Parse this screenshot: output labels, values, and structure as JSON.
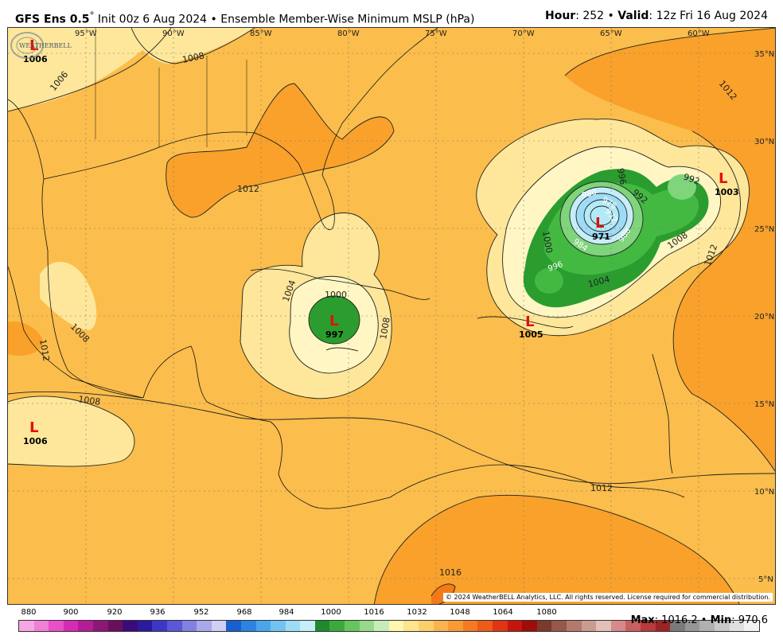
{
  "header": {
    "model": "GFS Ens 0.5",
    "degree": "°",
    "init": " Init 00z 6 Aug 2024",
    "separator": " • ",
    "product": "Ensemble Member-Wise Minimum MSLP (hPa)",
    "hour_label": "Hour",
    "hour_value": ": 252",
    "valid_label": "Valid",
    "valid_value": ": 12z Fri 16 Aug 2024"
  },
  "map": {
    "longitude_labels": [
      "95°W",
      "90°W",
      "85°W",
      "80°W",
      "75°W",
      "70°W",
      "65°W",
      "60°W"
    ],
    "latitude_labels": [
      "35°N",
      "30°N",
      "25°N",
      "20°N",
      "15°N",
      "10°N",
      "5°N"
    ],
    "contour_labels": [
      "1006",
      "1008",
      "1008",
      "1012",
      "1012",
      "1012",
      "1012",
      "1012",
      "1016",
      "1000",
      "1004",
      "1008",
      "992",
      "996",
      "992",
      "980",
      "976",
      "972",
      "988",
      "984",
      "1000",
      "996",
      "1004",
      "1008",
      "1008"
    ],
    "lows": [
      {
        "label": "L",
        "value": "1006"
      },
      {
        "label": "L",
        "value": "1006"
      },
      {
        "label": "L",
        "value": "997"
      },
      {
        "label": "L",
        "value": "971"
      },
      {
        "label": "L",
        "value": "1003"
      },
      {
        "label": "L",
        "value": "1005"
      }
    ],
    "copyright": "© 2024 WeatherBELL Analytics, LLC. All rights reserved. License required for commercial distribution.",
    "logo_text": "WEATHERBELL",
    "colors": {
      "ocean_1008_1012": "#fbbd4c",
      "band_1012_1016": "#f9a12b",
      "band_1016_plus": "#f37a17",
      "band_1004_1008": "#fee79a",
      "band_1000_1004": "#fff6c4",
      "band_996_1000": "#2a9d2e",
      "band_992_996": "#43b942",
      "band_988_992": "#7fd47c",
      "core_light": "#b4eaf5",
      "low_marker": "#e01010"
    }
  },
  "legend": {
    "ticks": [
      "880",
      "900",
      "920",
      "936",
      "952",
      "968",
      "984",
      "1000",
      "1016",
      "1032",
      "1048",
      "1064",
      "1080"
    ],
    "colors": [
      "#f7a6e4",
      "#f07fd8",
      "#e94fc9",
      "#d62bb4",
      "#b41d97",
      "#8e1677",
      "#6a0f5c",
      "#3a0b7a",
      "#2a1a9c",
      "#3c37c7",
      "#5a58d8",
      "#8280e0",
      "#aaa7ea",
      "#d0cff3",
      "#1a5fd1",
      "#2c84e0",
      "#4aa6ec",
      "#72c3f2",
      "#9edcf6",
      "#c6eef8",
      "#1f8a2b",
      "#3caa3a",
      "#66c560",
      "#97d98b",
      "#c7ecbc",
      "#fff6b0",
      "#fee48d",
      "#fdcf6b",
      "#fbb44d",
      "#f99a35",
      "#f57a22",
      "#ee5a18",
      "#e03412",
      "#c4160e",
      "#9e0d0a",
      "#7d3a2a",
      "#96584a",
      "#b27a6c",
      "#ca9c90",
      "#e0c0b8",
      "#d68a8a",
      "#c86060",
      "#b83a3a",
      "#9c2424",
      "#7a7a7a",
      "#969696",
      "#b0b0b0",
      "#c8c8c8",
      "#e0e0e0",
      "#f2f2f2"
    ]
  },
  "stats": {
    "max_label": "Max",
    "max_value": ": 1016.2",
    "separator": " • ",
    "min_label": "Min",
    "min_value": ": 970.6"
  }
}
